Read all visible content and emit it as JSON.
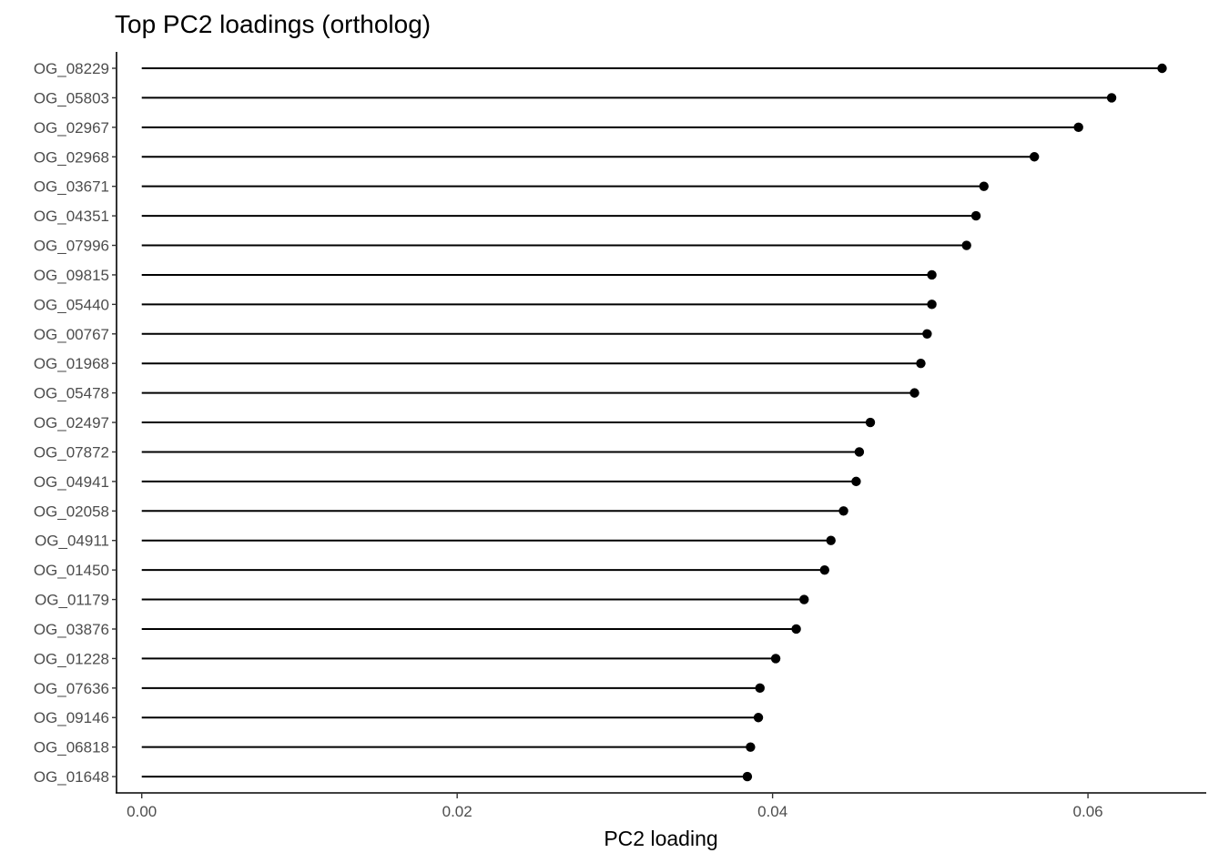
{
  "chart_data": {
    "type": "lollipop",
    "title": "Top PC2 loadings (ortholog)",
    "xlabel": "PC2 loading",
    "ylabel": "",
    "xlim": [
      -0.0016,
      0.0675
    ],
    "x_ticks": [
      0.0,
      0.02,
      0.04,
      0.06
    ],
    "x_tick_labels": [
      "0.00",
      "0.02",
      "0.04",
      "0.06"
    ],
    "grid": false,
    "categories": [
      "OG_08229",
      "OG_05803",
      "OG_02967",
      "OG_02968",
      "OG_03671",
      "OG_04351",
      "OG_07996",
      "OG_09815",
      "OG_05440",
      "OG_00767",
      "OG_01968",
      "OG_05478",
      "OG_02497",
      "OG_07872",
      "OG_04941",
      "OG_02058",
      "OG_04911",
      "OG_01450",
      "OG_01179",
      "OG_03876",
      "OG_01228",
      "OG_07636",
      "OG_09146",
      "OG_06818",
      "OG_01648"
    ],
    "values": [
      0.0647,
      0.0615,
      0.0594,
      0.0566,
      0.0534,
      0.0529,
      0.0523,
      0.0501,
      0.0501,
      0.0498,
      0.0494,
      0.049,
      0.0462,
      0.0455,
      0.0453,
      0.0445,
      0.0437,
      0.0433,
      0.042,
      0.0415,
      0.0402,
      0.0392,
      0.0391,
      0.0386,
      0.0384
    ],
    "colors": {
      "stem": "#000000",
      "point": "#000000",
      "tick_text": "#4d4d4d"
    }
  }
}
